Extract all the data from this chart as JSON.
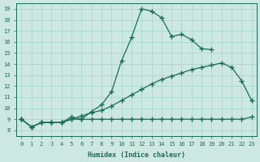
{
  "xlabel": "Humidex (Indice chaleur)",
  "bg_color": "#cce8e0",
  "grid_color": "#b0d8d0",
  "line_color": "#1a6b5a",
  "xlim": [
    -0.5,
    23.5
  ],
  "ylim": [
    7.5,
    19.5
  ],
  "xticks": [
    0,
    1,
    2,
    3,
    4,
    5,
    6,
    7,
    8,
    9,
    10,
    11,
    12,
    13,
    14,
    15,
    16,
    17,
    18,
    19,
    20,
    21,
    22,
    23
  ],
  "yticks": [
    8,
    9,
    10,
    11,
    12,
    13,
    14,
    15,
    16,
    17,
    18,
    19
  ],
  "line1_x": [
    0,
    1,
    2,
    3,
    4,
    5,
    6,
    7,
    8,
    9,
    10,
    11,
    12,
    13,
    14,
    15,
    16,
    17,
    18,
    19
  ],
  "line1_y": [
    9.0,
    8.3,
    8.7,
    8.7,
    8.7,
    9.2,
    9.0,
    9.7,
    10.3,
    11.5,
    14.3,
    16.4,
    19.0,
    18.8,
    18.2,
    16.5,
    16.7,
    16.2,
    15.4,
    15.3
  ],
  "line2_x": [
    0,
    1,
    2,
    3,
    4,
    5,
    6,
    7,
    8,
    9,
    10,
    11,
    12,
    13,
    14,
    15,
    16,
    17,
    18,
    19,
    20,
    21,
    22,
    23
  ],
  "line2_y": [
    9.0,
    8.3,
    8.7,
    8.7,
    8.7,
    9.0,
    9.3,
    9.6,
    9.8,
    10.2,
    10.7,
    11.2,
    11.7,
    12.2,
    12.6,
    12.9,
    13.2,
    13.5,
    13.7,
    13.9,
    14.1,
    13.7,
    12.5,
    10.7
  ],
  "line3_x": [
    0,
    1,
    2,
    3,
    4,
    5,
    6,
    7,
    8,
    9,
    10,
    11,
    12,
    13,
    14,
    15,
    16,
    17,
    18,
    19,
    20,
    21,
    22,
    23
  ],
  "line3_y": [
    9.0,
    8.3,
    8.7,
    8.7,
    8.7,
    9.0,
    9.0,
    9.0,
    9.0,
    9.0,
    9.0,
    9.0,
    9.0,
    9.0,
    9.0,
    9.0,
    9.0,
    9.0,
    9.0,
    9.0,
    9.0,
    9.0,
    9.0,
    9.2
  ]
}
